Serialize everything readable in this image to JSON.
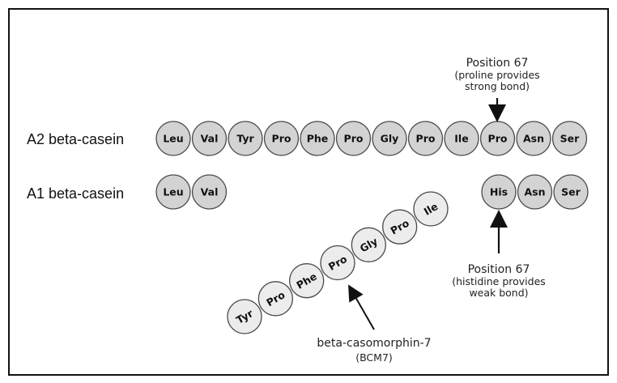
{
  "labels": {
    "a2": "A2 beta-casein",
    "a1": "A1 beta-casein"
  },
  "a2_chain": [
    "Leu",
    "Val",
    "Tyr",
    "Pro",
    "Phe",
    "Pro",
    "Gly",
    "Pro",
    "Ile",
    "Pro",
    "Asn",
    "Ser"
  ],
  "a1_chain_left": [
    "Leu",
    "Val"
  ],
  "a1_chain_right": [
    "His",
    "Asn",
    "Ser"
  ],
  "bcm7_chain": [
    "Tyr",
    "Pro",
    "Phe",
    "Pro",
    "Gly",
    "Pro",
    "Ile"
  ],
  "annotations": {
    "top": {
      "line1": "Position 67",
      "line2": "(proline provides",
      "line3": "strong bond)"
    },
    "bottom": {
      "line1": "Position 67",
      "line2": "(histidine provides",
      "line3": "weak bond)"
    },
    "bcm7": {
      "line1": "beta-casomorphin-7",
      "line2": "(BCM7)"
    }
  },
  "colors": {
    "residue_fill": "#d3d3d3",
    "bcm7_fill": "#ececec",
    "stroke": "#4a4a4a"
  }
}
